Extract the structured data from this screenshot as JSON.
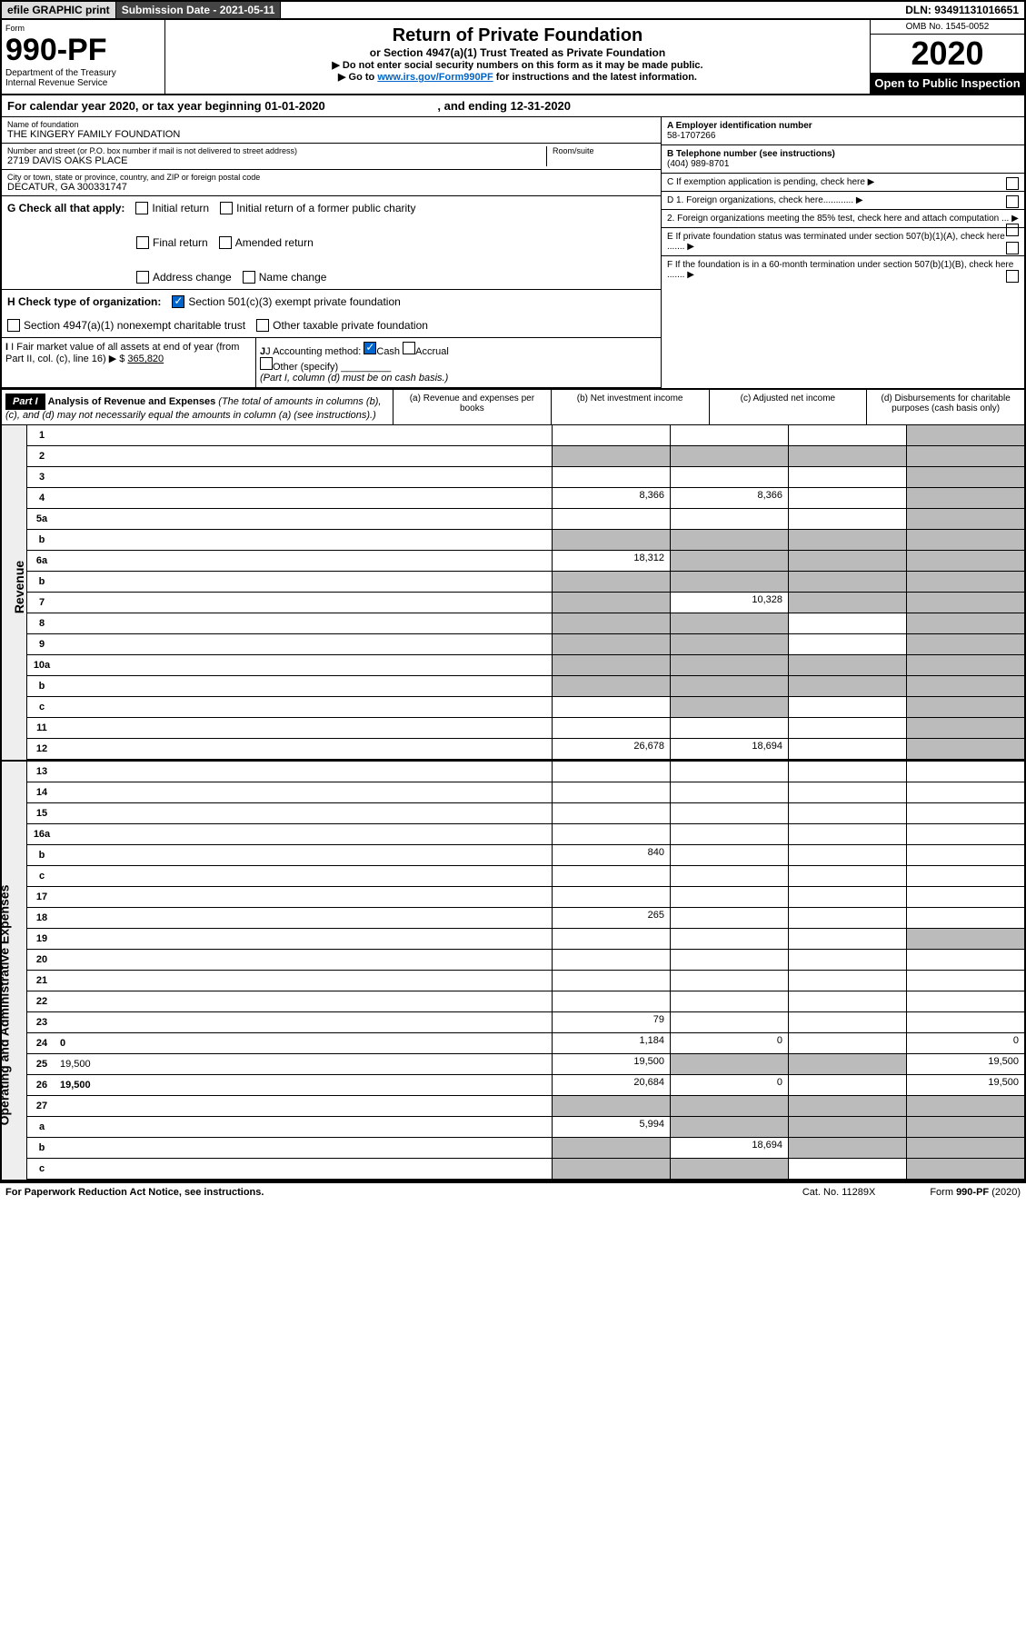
{
  "topbar": {
    "efile": "efile GRAPHIC print",
    "sub_date": "Submission Date - 2021-05-11",
    "dln": "DLN: 93491131016651"
  },
  "header": {
    "form_label": "Form",
    "form_num": "990-PF",
    "dept": "Department of the Treasury\nInternal Revenue Service",
    "title": "Return of Private Foundation",
    "subtitle": "or Section 4947(a)(1) Trust Treated as Private Foundation",
    "instr1": "▶ Do not enter social security numbers on this form as it may be made public.",
    "instr2_pre": "▶ Go to ",
    "instr2_link": "www.irs.gov/Form990PF",
    "instr2_post": " for instructions and the latest information.",
    "omb": "OMB No. 1545-0052",
    "year": "2020",
    "open": "Open to Public Inspection"
  },
  "calyear": "For calendar year 2020, or tax year beginning 01-01-2020",
  "calyear_end": ", and ending 12-31-2020",
  "info": {
    "name_label": "Name of foundation",
    "name": "THE KINGERY FAMILY FOUNDATION",
    "addr_label": "Number and street (or P.O. box number if mail is not delivered to street address)",
    "addr": "2719 DAVIS OAKS PLACE",
    "room_label": "Room/suite",
    "city_label": "City or town, state or province, country, and ZIP or foreign postal code",
    "city": "DECATUR, GA  300331747",
    "ein_label": "A Employer identification number",
    "ein": "58-1707266",
    "phone_label": "B Telephone number (see instructions)",
    "phone": "(404) 989-8701",
    "c": "C If exemption application is pending, check here",
    "d1": "D 1. Foreign organizations, check here............",
    "d2": "2. Foreign organizations meeting the 85% test, check here and attach computation ...",
    "e": "E  If private foundation status was terminated under section 507(b)(1)(A), check here .......",
    "f": "F  If the foundation is in a 60-month termination under section 507(b)(1)(B), check here .......",
    "g_label": "G Check all that apply:",
    "g_opts": [
      "Initial return",
      "Initial return of a former public charity",
      "Final return",
      "Amended return",
      "Address change",
      "Name change"
    ],
    "h_label": "H Check type of organization:",
    "h_opt1": "Section 501(c)(3) exempt private foundation",
    "h_opt2": "Section 4947(a)(1) nonexempt charitable trust",
    "h_opt3": "Other taxable private foundation",
    "i_label": "I Fair market value of all assets at end of year (from Part II, col. (c), line 16)",
    "i_val": "365,820",
    "j_label": "J Accounting method:",
    "j_cash": "Cash",
    "j_accrual": "Accrual",
    "j_other": "Other (specify)",
    "j_note": "(Part I, column (d) must be on cash basis.)"
  },
  "part1": {
    "label": "Part I",
    "title": "Analysis of Revenue and Expenses",
    "title_note": "(The total of amounts in columns (b), (c), and (d) may not necessarily equal the amounts in column (a) (see instructions).)",
    "col_a": "(a) Revenue and expenses per books",
    "col_b": "(b) Net investment income",
    "col_c": "(c) Adjusted net income",
    "col_d": "(d) Disbursements for charitable purposes (cash basis only)"
  },
  "vlabels": {
    "revenue": "Revenue",
    "expenses": "Operating and Administrative Expenses"
  },
  "rows": [
    {
      "n": "1",
      "d": "",
      "a": "",
      "b": "",
      "c": "",
      "sh": [
        "d"
      ]
    },
    {
      "n": "2",
      "d": "",
      "a": "",
      "b": "",
      "c": "",
      "sh": [
        "a",
        "b",
        "c",
        "d"
      ]
    },
    {
      "n": "3",
      "d": "",
      "a": "",
      "b": "",
      "c": "",
      "sh": [
        "d"
      ]
    },
    {
      "n": "4",
      "d": "",
      "a": "8,366",
      "b": "8,366",
      "c": "",
      "sh": [
        "d"
      ]
    },
    {
      "n": "5a",
      "d": "",
      "a": "",
      "b": "",
      "c": "",
      "sh": [
        "d"
      ]
    },
    {
      "n": "b",
      "d": "",
      "a": "",
      "b": "",
      "c": "",
      "sh": [
        "a",
        "b",
        "c",
        "d"
      ]
    },
    {
      "n": "6a",
      "d": "",
      "a": "18,312",
      "b": "",
      "c": "",
      "sh": [
        "b",
        "c",
        "d"
      ]
    },
    {
      "n": "b",
      "d": "",
      "a": "",
      "b": "",
      "c": "",
      "sh": [
        "a",
        "b",
        "c",
        "d"
      ]
    },
    {
      "n": "7",
      "d": "",
      "a": "",
      "b": "10,328",
      "c": "",
      "sh": [
        "a",
        "c",
        "d"
      ]
    },
    {
      "n": "8",
      "d": "",
      "a": "",
      "b": "",
      "c": "",
      "sh": [
        "a",
        "b",
        "d"
      ]
    },
    {
      "n": "9",
      "d": "",
      "a": "",
      "b": "",
      "c": "",
      "sh": [
        "a",
        "b",
        "d"
      ]
    },
    {
      "n": "10a",
      "d": "",
      "a": "",
      "b": "",
      "c": "",
      "sh": [
        "a",
        "b",
        "c",
        "d"
      ]
    },
    {
      "n": "b",
      "d": "",
      "a": "",
      "b": "",
      "c": "",
      "sh": [
        "a",
        "b",
        "c",
        "d"
      ]
    },
    {
      "n": "c",
      "d": "",
      "a": "",
      "b": "",
      "c": "",
      "sh": [
        "b",
        "d"
      ]
    },
    {
      "n": "11",
      "d": "",
      "a": "",
      "b": "",
      "c": "",
      "sh": [
        "d"
      ]
    },
    {
      "n": "12",
      "d": "",
      "a": "26,678",
      "b": "18,694",
      "c": "",
      "sh": [
        "d"
      ],
      "bold": true
    },
    {
      "n": "13",
      "d": "",
      "a": "",
      "b": "",
      "c": ""
    },
    {
      "n": "14",
      "d": "",
      "a": "",
      "b": "",
      "c": ""
    },
    {
      "n": "15",
      "d": "",
      "a": "",
      "b": "",
      "c": ""
    },
    {
      "n": "16a",
      "d": "",
      "a": "",
      "b": "",
      "c": ""
    },
    {
      "n": "b",
      "d": "",
      "a": "840",
      "b": "",
      "c": ""
    },
    {
      "n": "c",
      "d": "",
      "a": "",
      "b": "",
      "c": ""
    },
    {
      "n": "17",
      "d": "",
      "a": "",
      "b": "",
      "c": ""
    },
    {
      "n": "18",
      "d": "",
      "a": "265",
      "b": "",
      "c": ""
    },
    {
      "n": "19",
      "d": "",
      "a": "",
      "b": "",
      "c": "",
      "sh": [
        "d"
      ]
    },
    {
      "n": "20",
      "d": "",
      "a": "",
      "b": "",
      "c": ""
    },
    {
      "n": "21",
      "d": "",
      "a": "",
      "b": "",
      "c": ""
    },
    {
      "n": "22",
      "d": "",
      "a": "",
      "b": "",
      "c": ""
    },
    {
      "n": "23",
      "d": "",
      "a": "79",
      "b": "",
      "c": ""
    },
    {
      "n": "24",
      "d": "0",
      "a": "1,184",
      "b": "0",
      "c": "",
      "bold": true
    },
    {
      "n": "25",
      "d": "19,500",
      "a": "19,500",
      "b": "",
      "c": "",
      "sh": [
        "b",
        "c"
      ]
    },
    {
      "n": "26",
      "d": "19,500",
      "a": "20,684",
      "b": "0",
      "c": "",
      "bold": true
    },
    {
      "n": "27",
      "d": "",
      "a": "",
      "b": "",
      "c": "",
      "sh": [
        "a",
        "b",
        "c",
        "d"
      ]
    },
    {
      "n": "a",
      "d": "",
      "a": "5,994",
      "b": "",
      "c": "",
      "sh": [
        "b",
        "c",
        "d"
      ],
      "bold": true
    },
    {
      "n": "b",
      "d": "",
      "a": "",
      "b": "18,694",
      "c": "",
      "sh": [
        "a",
        "c",
        "d"
      ],
      "bold": true
    },
    {
      "n": "c",
      "d": "",
      "a": "",
      "b": "",
      "c": "",
      "sh": [
        "a",
        "b",
        "d"
      ],
      "bold": true
    }
  ],
  "footer": {
    "left": "For Paperwork Reduction Act Notice, see instructions.",
    "mid": "Cat. No. 11289X",
    "right": "Form 990-PF (2020)"
  },
  "colors": {
    "link": "#0066cc",
    "checked": "#0066cc",
    "shade": "#bbbbbb"
  }
}
